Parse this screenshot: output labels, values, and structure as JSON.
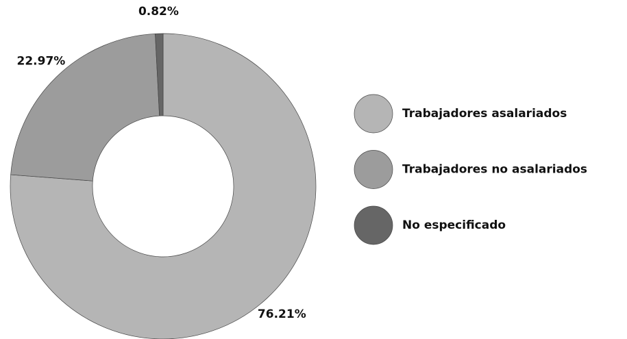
{
  "chart_data": {
    "type": "donut",
    "categories": [
      "Trabajadores asalariados",
      "Trabajadores no asalariados",
      "No especificado"
    ],
    "values": [
      76.21,
      22.97,
      0.82
    ],
    "value_labels": [
      "76.21%",
      "22.97%",
      "0.82%"
    ],
    "colors": [
      "#b5b5b5",
      "#9c9c9c",
      "#666666"
    ],
    "legend": "right"
  }
}
